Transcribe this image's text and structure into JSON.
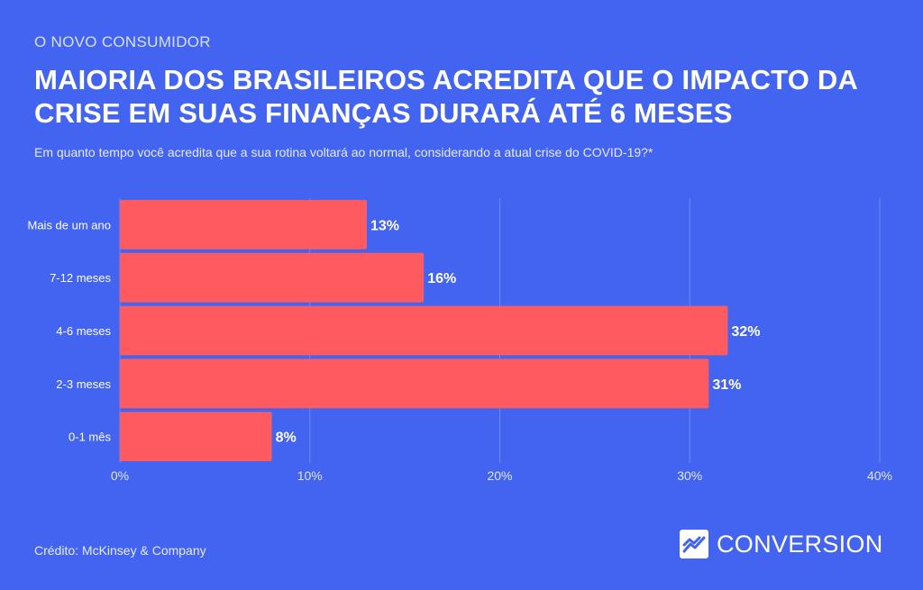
{
  "header": {
    "kicker": "O NOVO CONSUMIDOR",
    "title": "MAIORIA DOS BRASILEIROS ACREDITA QUE O IMPACTO DA CRISE EM SUAS FINANÇAS DURARÁ ATÉ 6 MESES",
    "subtitle": "Em quanto tempo você acredita que a sua rotina voltará ao normal, considerando a atual crise do COVID-19?*"
  },
  "footer": {
    "credit": "Crédito: McKinsey & Company",
    "brand": "CONVERSION",
    "brand_icon": "chart-trend-icon"
  },
  "colors": {
    "background": "#4364f0",
    "bar": "#ff5a5f",
    "text": "#ffffff",
    "grid": "#6f88f3"
  },
  "chart_data": {
    "type": "bar",
    "orientation": "horizontal",
    "categories": [
      "Mais de um ano",
      "7-12 meses",
      "4-6 meses",
      "2-3 meses",
      "0-1 mês"
    ],
    "values": [
      13,
      16,
      32,
      31,
      8
    ],
    "data_labels": [
      "13%",
      "16%",
      "32%",
      "31%",
      "8%"
    ],
    "x_ticks": [
      "0%",
      "10%",
      "20%",
      "30%",
      "40%"
    ],
    "x_tick_values": [
      0,
      10,
      20,
      30,
      40
    ],
    "xlim": [
      0,
      40
    ],
    "grid": true,
    "legend": "none"
  }
}
